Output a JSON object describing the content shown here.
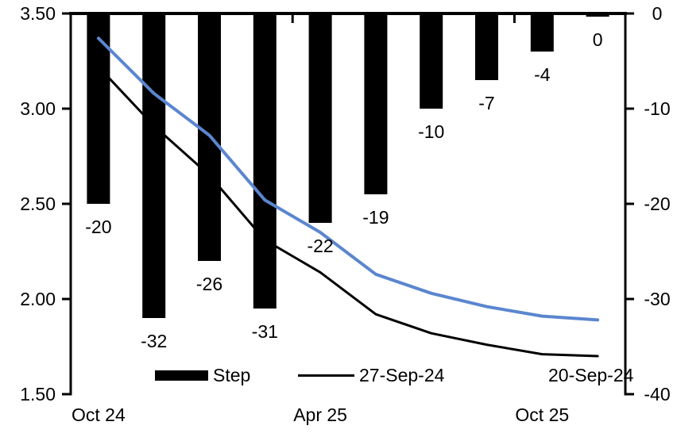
{
  "chart_data": {
    "type": "combo-bar-line",
    "title": "",
    "categories_count": 10,
    "x_axis_labels": [
      {
        "text": "Oct 24",
        "slot": 0
      },
      {
        "text": "Apr 25",
        "slot": 4
      },
      {
        "text": "Oct 25",
        "slot": 8
      }
    ],
    "left_axis": {
      "min": 1.5,
      "max": 3.5,
      "tick_labels": [
        "3.50",
        "3.00",
        "2.50",
        "2.00",
        "1.50"
      ]
    },
    "right_axis": {
      "min": -40,
      "max": 0,
      "tick_labels": [
        "0",
        "-10",
        "-20",
        "-30",
        "-40"
      ]
    },
    "bar_series": {
      "name": "Step",
      "axis": "right",
      "color": "#000000",
      "values": [
        -20,
        -32,
        -26,
        -31,
        -22,
        -19,
        -10,
        -7,
        -4,
        0
      ],
      "data_labels": [
        "-20",
        "-32",
        "-26",
        "-31",
        "-22",
        "-19",
        "-10",
        "-7",
        "-4",
        "0"
      ]
    },
    "line_series": [
      {
        "name": "27-Sep-24",
        "axis": "left",
        "color": "#000000",
        "stroke_width": 3,
        "values": [
          3.22,
          2.91,
          2.65,
          2.31,
          2.14,
          1.92,
          1.82,
          1.76,
          1.71,
          1.7
        ]
      },
      {
        "name": "20-Sep-24",
        "axis": "left",
        "color": "#5b86cf",
        "stroke_width": 4,
        "values": [
          3.37,
          3.08,
          2.86,
          2.52,
          2.35,
          2.13,
          2.03,
          1.96,
          1.91,
          1.89
        ]
      }
    ],
    "legend": {
      "position": "inside-bottom",
      "entries": [
        "Step",
        "27-Sep-24",
        "20-Sep-24"
      ]
    },
    "grid": false,
    "accent_blue": "#5b86cf"
  }
}
